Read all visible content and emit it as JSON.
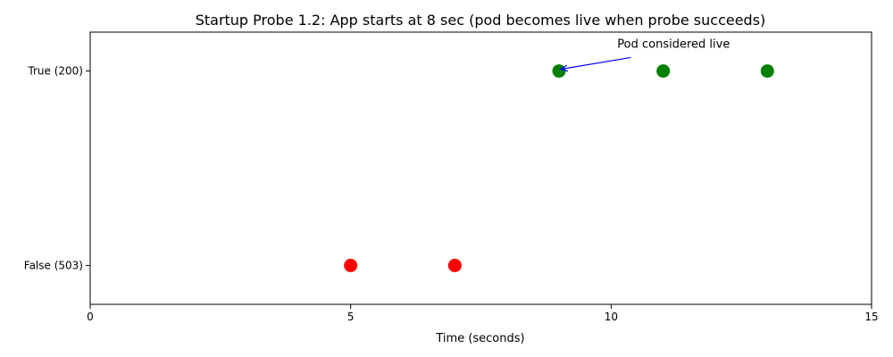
{
  "chart_data": {
    "type": "scatter",
    "title": "Startup Probe 1.2: App starts at 8 sec (pod becomes live when probe succeeds)",
    "xlabel": "Time (seconds)",
    "ylabel": "",
    "xlim": [
      0,
      15
    ],
    "x_ticks": [
      0,
      5,
      10,
      15
    ],
    "y_categories": [
      "False (503)",
      "True (200)"
    ],
    "ylim": [
      -0.2,
      1.2
    ],
    "grid": false,
    "points": [
      {
        "x": 5,
        "y": 0,
        "color": "#ff0000"
      },
      {
        "x": 7,
        "y": 0,
        "color": "#ff0000"
      },
      {
        "x": 9,
        "y": 1,
        "color": "#008000"
      },
      {
        "x": 11,
        "y": 1,
        "color": "#008000"
      },
      {
        "x": 13,
        "y": 1,
        "color": "#008000"
      }
    ],
    "annotation": {
      "text": "Pod considered live",
      "target": {
        "x": 9,
        "y": 1
      },
      "text_at": {
        "x": 11.2,
        "y": 1.12
      },
      "color": "#0000ff"
    }
  }
}
